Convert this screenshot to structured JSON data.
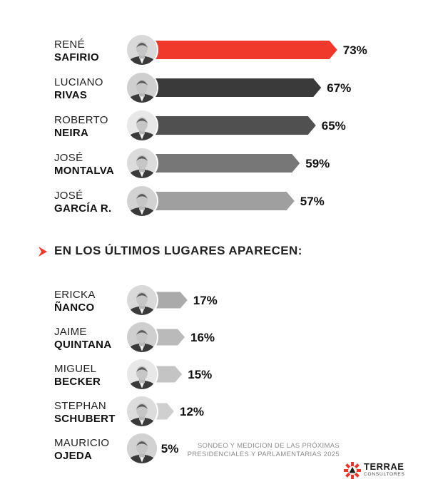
{
  "chart_data": [
    {
      "type": "bar",
      "orientation": "horizontal",
      "categories": [
        "RENÉ SAFIRIO",
        "LUCIANO RIVAS",
        "ROBERTO NEIRA",
        "JOSÉ MONTALVA",
        "JOSÉ GARCÍA R."
      ],
      "candidates": [
        {
          "first": "RENÉ",
          "last": "SAFIRIO",
          "value": 73,
          "label": "73%",
          "color": "#f0382b"
        },
        {
          "first": "LUCIANO",
          "last": "RIVAS",
          "value": 67,
          "label": "67%",
          "color": "#3a3a3a"
        },
        {
          "first": "ROBERTO",
          "last": "NEIRA",
          "value": 65,
          "label": "65%",
          "color": "#505050"
        },
        {
          "first": "JOSÉ",
          "last": "MONTALVA",
          "value": 59,
          "label": "59%",
          "color": "#777777"
        },
        {
          "first": "JOSÉ",
          "last": "GARCÍA R.",
          "value": 57,
          "label": "57%",
          "color": "#9f9f9f"
        }
      ],
      "values": [
        73,
        67,
        65,
        59,
        57
      ],
      "xlim": [
        0,
        100
      ]
    },
    {
      "type": "bar",
      "orientation": "horizontal",
      "title": "EN LOS ÚLTIMOS LUGARES APARECEN:",
      "categories": [
        "ERICKA ÑANCO",
        "JAIME QUINTANA",
        "MIGUEL BECKER",
        "STEPHAN SCHUBERT",
        "MAURICIO OJEDA"
      ],
      "candidates": [
        {
          "first": "ERICKA",
          "last": "ÑANCO",
          "value": 17,
          "label": "17%",
          "color": "#aaaaaa"
        },
        {
          "first": "JAIME",
          "last": "QUINTANA",
          "value": 16,
          "label": "16%",
          "color": "#bababa"
        },
        {
          "first": "MIGUEL",
          "last": "BECKER",
          "value": 15,
          "label": "15%",
          "color": "#c4c4c4"
        },
        {
          "first": "STEPHAN",
          "last": "SCHUBERT",
          "value": 12,
          "label": "12%",
          "color": "#cfcfcf"
        },
        {
          "first": "MAURICIO",
          "last": "OJEDA",
          "value": 5,
          "label": "5%",
          "color": "#dddddd"
        }
      ],
      "values": [
        17,
        16,
        15,
        12,
        5
      ],
      "xlim": [
        0,
        100
      ]
    }
  ],
  "section": {
    "title": "EN LOS ÚLTIMOS LUGARES APARECEN:",
    "marker_color": "#f0382b"
  },
  "footer": {
    "line1": "SONDEO Y MEDICION DE LAS PRÓXIMAS",
    "line2": "PRESIDENCIALES Y PARLAMENTARIAS 2025"
  },
  "logo": {
    "name": "TERRAE",
    "sub": "CONSULTORES",
    "color": "#e8372b"
  }
}
